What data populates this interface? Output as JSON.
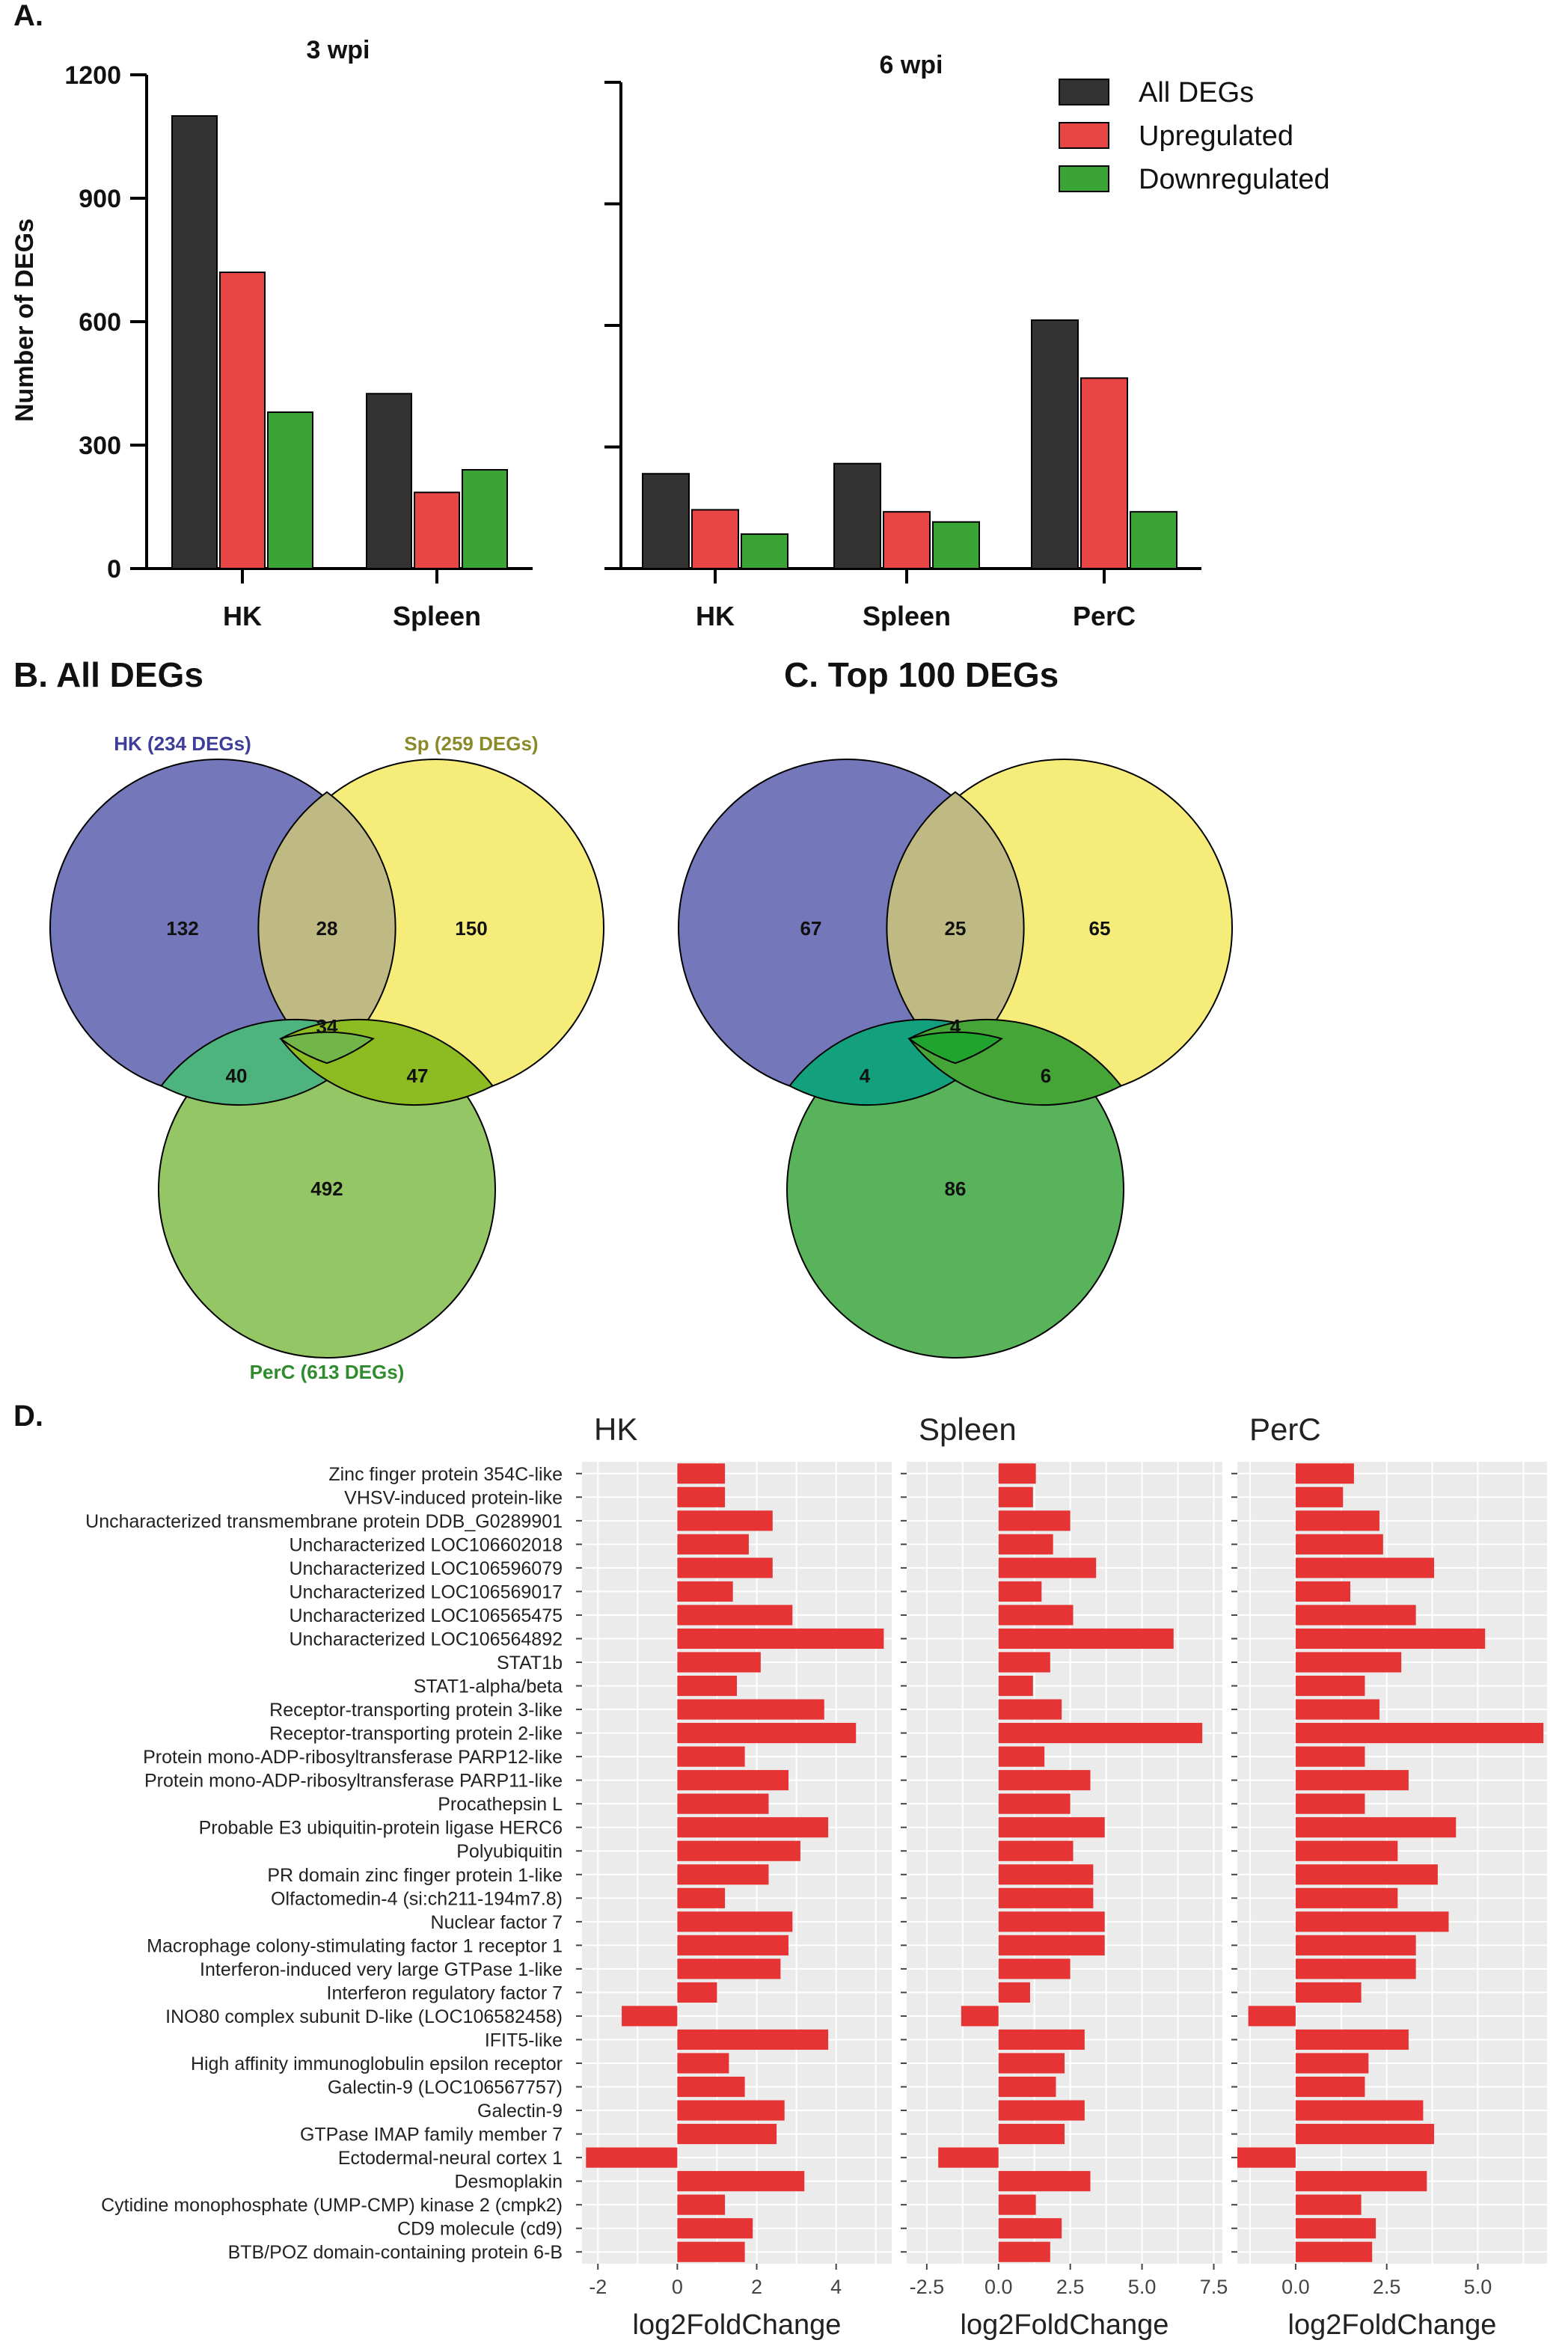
{
  "panel_labels": {
    "a": "A.",
    "b": "B. All DEGs",
    "c": "C. Top 100 DEGs",
    "d": "D."
  },
  "colors": {
    "all": "#333333",
    "up": "#e84545",
    "down": "#3aa535",
    "bar_d": "#e63333",
    "grid_bg": "#ebebeb",
    "venn_hk": "#7477b9",
    "venn_sp": "#f5ec7a",
    "venn_perc_b": "#95c665",
    "venn_perc_c": "#58b35a"
  },
  "chart_data": [
    {
      "id": "a_3wpi",
      "type": "bar",
      "title": "3 wpi",
      "ylabel": "Number of DEGs",
      "ylim": [
        0,
        1200
      ],
      "yticks": [
        "0",
        "300",
        "600",
        "900",
        "1200"
      ],
      "categories": [
        "HK",
        "Spleen"
      ],
      "series": [
        {
          "name": "All DEGs",
          "values": [
            1100,
            425
          ]
        },
        {
          "name": "Upregulated",
          "values": [
            720,
            185
          ]
        },
        {
          "name": "Downregulated",
          "values": [
            380,
            240
          ]
        }
      ]
    },
    {
      "id": "a_6wpi",
      "type": "bar",
      "title": "6 wpi",
      "ylim": [
        0,
        1200
      ],
      "categories": [
        "HK",
        "Spleen",
        "PerC"
      ],
      "legend": [
        "All DEGs",
        "Upregulated",
        "Downregulated"
      ],
      "series": [
        {
          "name": "All DEGs",
          "values": [
            234,
            259,
            613
          ]
        },
        {
          "name": "Upregulated",
          "values": [
            145,
            140,
            470
          ]
        },
        {
          "name": "Downregulated",
          "values": [
            85,
            115,
            140
          ]
        }
      ]
    },
    {
      "id": "b_venn",
      "type": "venn",
      "sets": [
        "HK (234 DEGs)",
        "Sp (259 DEGs)",
        "PerC (613 DEGs)"
      ],
      "regions": {
        "hk": "132",
        "sp": "150",
        "perc": "492",
        "hk_sp": "28",
        "hk_perc": "40",
        "sp_perc": "47",
        "all": "34"
      }
    },
    {
      "id": "c_venn",
      "type": "venn",
      "regions": {
        "hk": "67",
        "sp": "65",
        "perc": "86",
        "hk_sp": "25",
        "hk_perc": "4",
        "sp_perc": "6",
        "all": "4"
      }
    },
    {
      "id": "d_bars",
      "type": "bar",
      "orientation": "horizontal",
      "xlabel": "log2FoldChange",
      "genes": [
        "Zinc finger protein 354C-like",
        "VHSV-induced protein-like",
        "Uncharacterized transmembrane protein DDB_G0289901",
        "Uncharacterized LOC106602018",
        "Uncharacterized LOC106596079",
        "Uncharacterized LOC106569017",
        "Uncharacterized LOC106565475",
        "Uncharacterized LOC106564892",
        "STAT1b",
        "STAT1-alpha/beta",
        "Receptor-transporting protein 3-like",
        "Receptor-transporting protein 2-like",
        "Protein mono-ADP-ribosyltransferase PARP12-like",
        "Protein mono-ADP-ribosyltransferase PARP11-like",
        "Procathepsin L",
        "Probable E3 ubiquitin-protein ligase HERC6",
        "Polyubiquitin",
        "PR domain zinc finger protein 1-like",
        "Olfactomedin-4 (si:ch211-194m7.8)",
        "Nuclear factor 7",
        "Macrophage colony-stimulating factor 1 receptor 1",
        "Interferon-induced very large GTPase 1-like",
        "Interferon regulatory factor 7",
        "INO80 complex subunit D-like (LOC106582458)",
        "IFIT5-like",
        "High affinity immunoglobulin epsilon receptor",
        "Galectin-9 (LOC106567757)",
        "Galectin-9",
        "GTPase IMAP family member 7",
        "Ectodermal-neural cortex 1",
        "Desmoplakin",
        "Cytidine monophosphate (UMP-CMP) kinase 2 (cmpk2)",
        "CD9 molecule (cd9)",
        "BTB/POZ domain-containing protein 6-B"
      ],
      "panels": [
        {
          "name": "HK",
          "xlim": [
            -2.4,
            5.4
          ],
          "xticks": [
            -2,
            0,
            2,
            4
          ],
          "xtick_labels": [
            "-2",
            "0",
            "2",
            "4"
          ],
          "values": [
            1.2,
            1.2,
            2.4,
            1.8,
            2.4,
            1.4,
            2.9,
            5.2,
            2.1,
            1.5,
            3.7,
            4.5,
            1.7,
            2.8,
            2.3,
            3.8,
            3.1,
            2.3,
            1.2,
            2.9,
            2.8,
            2.6,
            1.0,
            -1.4,
            3.8,
            1.3,
            1.7,
            2.7,
            2.5,
            -2.3,
            3.2,
            1.2,
            1.9,
            1.7
          ]
        },
        {
          "name": "Spleen",
          "xlim": [
            -3.2,
            7.8
          ],
          "xticks": [
            -2.5,
            0,
            2.5,
            5,
            7.5
          ],
          "xtick_labels": [
            "-2.5",
            "0.0",
            "2.5",
            "5.0",
            "7.5"
          ],
          "values": [
            1.3,
            1.2,
            2.5,
            1.9,
            3.4,
            1.5,
            2.6,
            6.1,
            1.8,
            1.2,
            2.2,
            7.1,
            1.6,
            3.2,
            2.5,
            3.7,
            2.6,
            3.3,
            3.3,
            3.7,
            3.7,
            2.5,
            1.1,
            -1.3,
            3.0,
            2.3,
            2.0,
            3.0,
            2.3,
            -2.1,
            3.2,
            1.3,
            2.2,
            1.8
          ]
        },
        {
          "name": "PerC",
          "xlim": [
            -1.6,
            6.9
          ],
          "xticks": [
            0,
            2.5,
            5
          ],
          "xtick_labels": [
            "0.0",
            "2.5",
            "5.0"
          ],
          "values": [
            1.6,
            1.3,
            2.3,
            2.4,
            3.8,
            1.5,
            3.3,
            5.2,
            2.9,
            1.9,
            2.3,
            6.8,
            1.9,
            3.1,
            1.9,
            4.4,
            2.8,
            3.9,
            2.8,
            4.2,
            3.3,
            3.3,
            1.8,
            -1.3,
            3.1,
            2.0,
            1.9,
            3.5,
            3.8,
            -1.6,
            3.6,
            1.8,
            2.2,
            2.1
          ]
        }
      ]
    }
  ]
}
